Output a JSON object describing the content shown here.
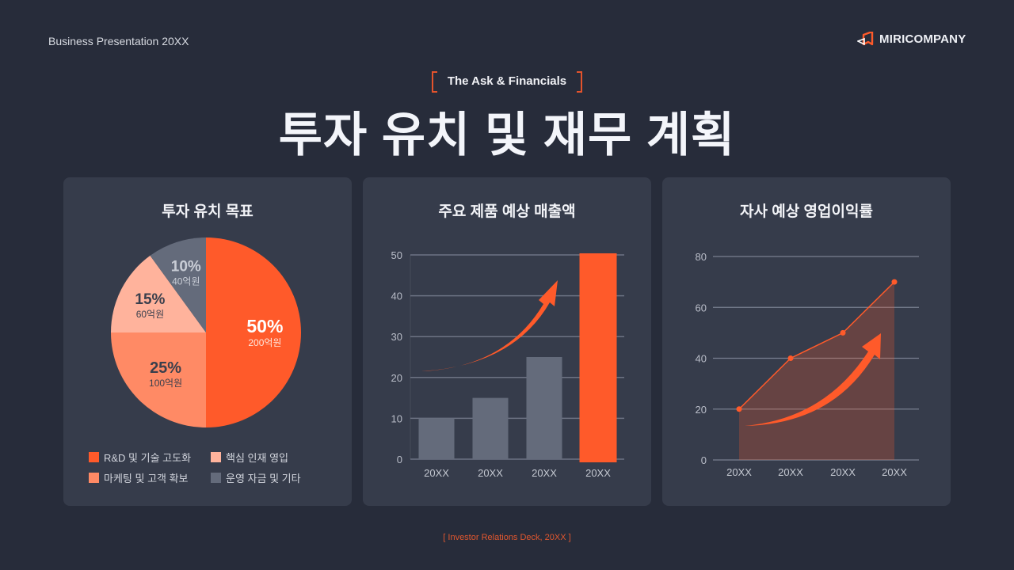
{
  "header": {
    "subtitle": "Business Presentation 20XX",
    "logo_text": "MIRICOMPANY",
    "kicker": "The Ask & Financials",
    "title": "투자 유치 및 재무 계획"
  },
  "footer": {
    "text": "[ Investor Relations Deck, 20XX ]"
  },
  "colors": {
    "background": "#272c3a",
    "card": "#363c4b",
    "accent": "#ff5a2a",
    "gray_bar": "#646b7b"
  },
  "cards": [
    {
      "title": "투자 유치 목표",
      "legend": [
        {
          "label": "R&D 및 기술 고도화",
          "color": "#ff5a2a"
        },
        {
          "label": "핵심 인재 영입",
          "color": "#ffb39c"
        },
        {
          "label": "마케팅 및 고객 확보",
          "color": "#ff8a65"
        },
        {
          "label": "운영 자금 및 기타",
          "color": "#646b7b"
        }
      ]
    },
    {
      "title": "주요 제품 예상 매출액"
    },
    {
      "title": "자사 예상 영업이익률"
    }
  ],
  "chart_data": [
    {
      "type": "pie",
      "title": "투자 유치 목표",
      "categories": [
        "R&D 및 기술 고도화",
        "마케팅 및 고객 확보",
        "핵심 인재 영입",
        "운영 자금 및 기타"
      ],
      "values": [
        50,
        25,
        15,
        10
      ],
      "value_labels": [
        "50%",
        "25%",
        "15%",
        "10%"
      ],
      "amount_labels": [
        "200억원",
        "100억원",
        "60억원",
        "40억원"
      ],
      "colors": [
        "#ff5a2a",
        "#ff8a65",
        "#ffb39c",
        "#646b7b"
      ],
      "legend_position": "bottom"
    },
    {
      "type": "bar",
      "title": "주요 제품 예상 매출액",
      "categories": [
        "20XX",
        "20XX",
        "20XX",
        "20XX"
      ],
      "values": [
        10,
        15,
        25,
        50
      ],
      "highlight_index": 3,
      "ylim": [
        0,
        50
      ],
      "yticks": [
        0,
        10,
        20,
        30,
        40,
        50
      ],
      "grid": true,
      "annotation": "upward-trend-arrow"
    },
    {
      "type": "area",
      "title": "자사 예상 영업이익률",
      "categories": [
        "20XX",
        "20XX",
        "20XX",
        "20XX"
      ],
      "values": [
        20,
        40,
        50,
        70
      ],
      "ylim": [
        0,
        80
      ],
      "yticks": [
        0,
        20,
        40,
        60,
        80
      ],
      "grid": true,
      "annotation": "upward-trend-arrow"
    }
  ]
}
